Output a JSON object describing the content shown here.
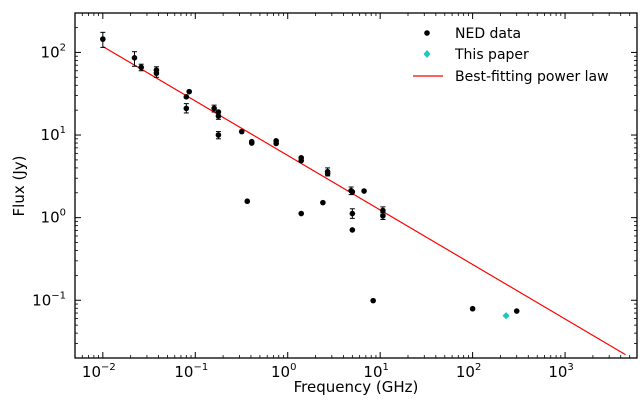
{
  "chart_data": {
    "type": "scatter",
    "xlabel": "Frequency (GHz)",
    "ylabel": "Flux (Jy)",
    "xscale": "log",
    "yscale": "log",
    "xlim": [
      0.005,
      6000
    ],
    "ylim": [
      0.02,
      300
    ],
    "grid": false,
    "legend_position": "top-right",
    "x_ticks": [
      {
        "value": 0.01,
        "base": "10",
        "exp": "−2"
      },
      {
        "value": 0.1,
        "base": "10",
        "exp": "−1"
      },
      {
        "value": 1,
        "base": "10",
        "exp": "0"
      },
      {
        "value": 10,
        "base": "10",
        "exp": "1"
      },
      {
        "value": 100,
        "base": "10",
        "exp": "2"
      },
      {
        "value": 1000,
        "base": "10",
        "exp": "3"
      }
    ],
    "y_ticks": [
      {
        "value": 0.1,
        "base": "10",
        "exp": "−1"
      },
      {
        "value": 1,
        "base": "10",
        "exp": "0"
      },
      {
        "value": 10,
        "base": "10",
        "exp": "1"
      },
      {
        "value": 100,
        "base": "10",
        "exp": "2"
      }
    ],
    "series": [
      {
        "name": "NED data",
        "marker": "circle",
        "color": "#000000",
        "points": [
          {
            "x": 0.01,
            "y": 145,
            "err": [
              115,
              175
            ]
          },
          {
            "x": 0.022,
            "y": 86,
            "err": [
              68,
              102
            ]
          },
          {
            "x": 0.026,
            "y": 66,
            "err": [
              60,
              72
            ]
          },
          {
            "x": 0.038,
            "y": 61,
            "err": [
              55,
              67
            ]
          },
          {
            "x": 0.038,
            "y": 56,
            "err": [
              50,
              61
            ]
          },
          {
            "x": 0.08,
            "y": 21,
            "err": [
              18.5,
              24
            ]
          },
          {
            "x": 0.08,
            "y": 29
          },
          {
            "x": 0.086,
            "y": 33.5
          },
          {
            "x": 0.16,
            "y": 21,
            "err": [
              19,
              23
            ]
          },
          {
            "x": 0.178,
            "y": 17,
            "err": [
              15.5,
              19
            ]
          },
          {
            "x": 0.178,
            "y": 19
          },
          {
            "x": 0.178,
            "y": 10,
            "err": [
              9,
              11
            ]
          },
          {
            "x": 0.318,
            "y": 11
          },
          {
            "x": 0.365,
            "y": 1.58
          },
          {
            "x": 0.408,
            "y": 8.3
          },
          {
            "x": 0.408,
            "y": 8.0
          },
          {
            "x": 0.75,
            "y": 8.5
          },
          {
            "x": 0.75,
            "y": 7.9
          },
          {
            "x": 1.4,
            "y": 5.3
          },
          {
            "x": 1.4,
            "y": 4.9
          },
          {
            "x": 1.4,
            "y": 1.12
          },
          {
            "x": 2.4,
            "y": 1.52
          },
          {
            "x": 2.7,
            "y": 3.6,
            "err": [
              3.2,
              4.0
            ]
          },
          {
            "x": 2.7,
            "y": 3.4
          },
          {
            "x": 4.85,
            "y": 2.12,
            "err": [
              1.9,
              2.35
            ]
          },
          {
            "x": 5.0,
            "y": 2.05
          },
          {
            "x": 5.0,
            "y": 1.12,
            "err": [
              0.98,
              1.28
            ]
          },
          {
            "x": 5.0,
            "y": 0.71
          },
          {
            "x": 6.7,
            "y": 2.1
          },
          {
            "x": 8.4,
            "y": 0.099
          },
          {
            "x": 10.7,
            "y": 1.22,
            "err": [
              1.1,
              1.35
            ]
          },
          {
            "x": 10.7,
            "y": 1.05,
            "err": [
              0.95,
              1.15
            ]
          },
          {
            "x": 100,
            "y": 0.079
          },
          {
            "x": 300,
            "y": 0.074
          }
        ]
      },
      {
        "name": "This paper",
        "marker": "diamond",
        "color": "#20c5c0",
        "points": [
          {
            "x": 230,
            "y": 0.065
          }
        ]
      },
      {
        "name": "Best-fitting power law",
        "type": "line",
        "color": "#ff0000",
        "points": [
          {
            "x": 0.01,
            "y": 118
          },
          {
            "x": 4500,
            "y": 0.022
          }
        ]
      }
    ]
  }
}
